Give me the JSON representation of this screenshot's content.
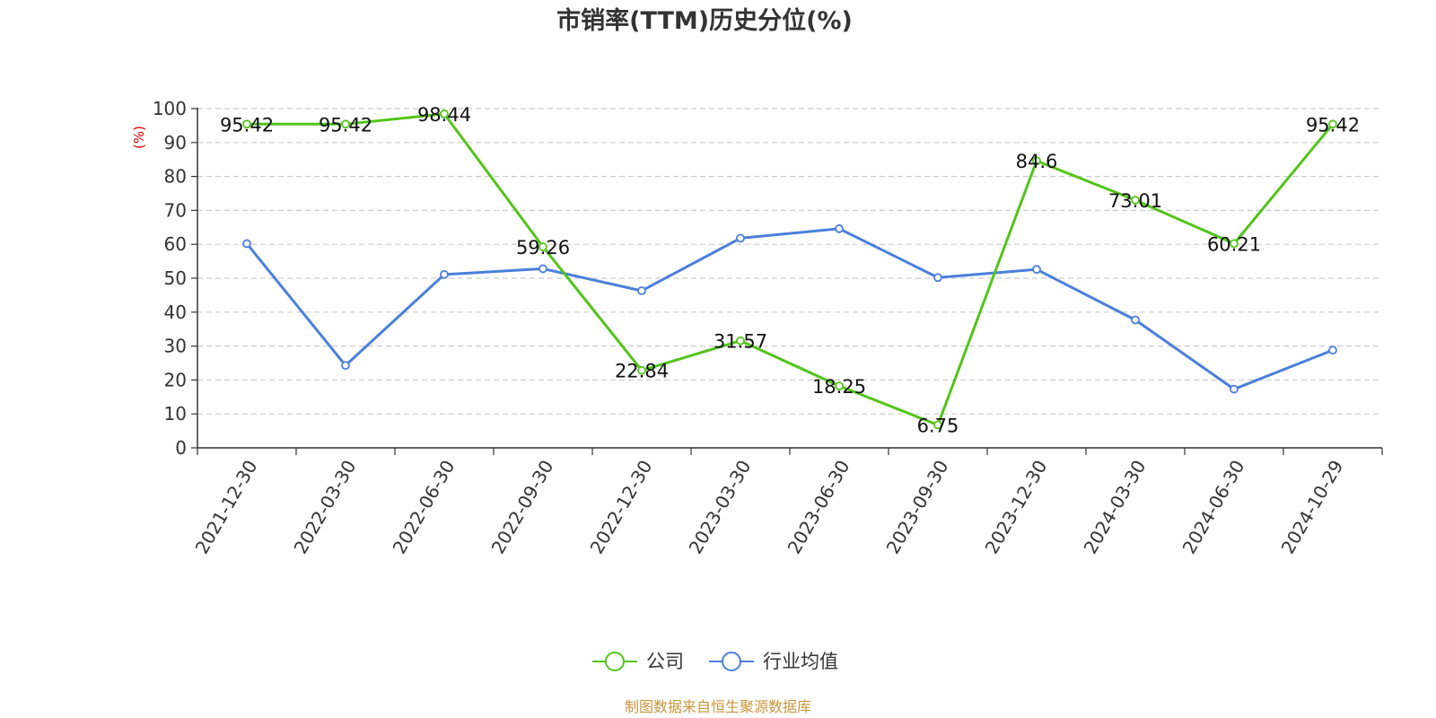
{
  "chart_data": {
    "type": "line",
    "title": "市销率(TTM)历史分位(%)",
    "ylabel": "(%)",
    "xlabel": "",
    "ylim": [
      0,
      100
    ],
    "yticks": [
      0,
      10,
      20,
      30,
      40,
      50,
      60,
      70,
      80,
      90,
      100
    ],
    "categories": [
      "2021-12-30",
      "2022-03-30",
      "2022-06-30",
      "2022-09-30",
      "2022-12-30",
      "2023-03-30",
      "2023-06-30",
      "2023-09-30",
      "2023-12-30",
      "2024-03-30",
      "2024-06-30",
      "2024-10-29"
    ],
    "series": [
      {
        "name": "公司",
        "color": "#52c41a",
        "values": [
          95.42,
          95.42,
          98.44,
          59.26,
          22.84,
          31.57,
          18.25,
          6.75,
          84.6,
          73.01,
          60.21,
          95.42
        ],
        "labels": [
          "95.42",
          "95.42",
          "98.44",
          "59.26",
          "22.84",
          "31.57",
          "18.25",
          "6.75",
          "84.6",
          "73.01",
          "60.21",
          "95.42"
        ],
        "show_labels": true
      },
      {
        "name": "行业均值",
        "color": "#4a7fdc",
        "values": [
          60.2,
          24.3,
          51.1,
          52.8,
          46.3,
          61.8,
          64.6,
          50.2,
          52.6,
          37.7,
          17.3,
          28.8
        ],
        "show_labels": false
      }
    ],
    "grid": true,
    "legend_position": "bottom-center"
  },
  "source_text": "制图数据来自恒生聚源数据库"
}
